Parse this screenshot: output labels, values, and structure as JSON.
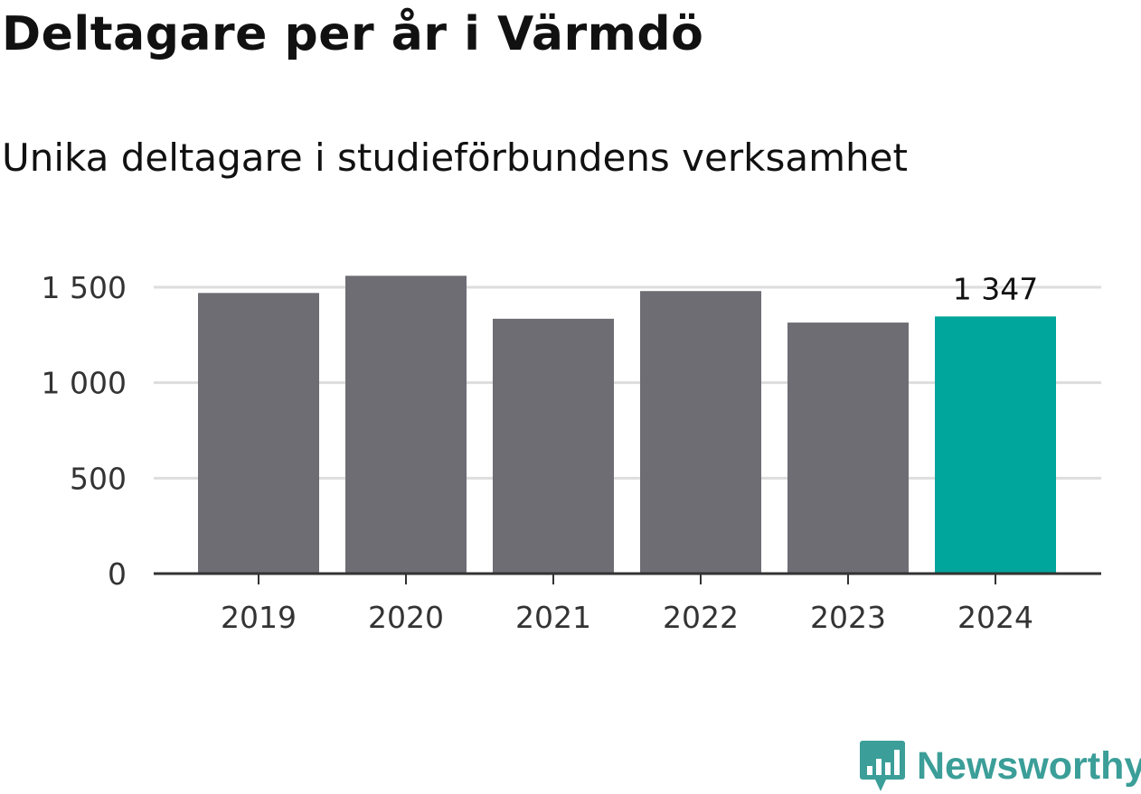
{
  "title": "Deltagare per år i Värmdö",
  "subtitle": "Unika deltagare i studieförbundens verksamhet",
  "brand": {
    "name": "Newsworthy",
    "color": "#3b9e98",
    "icon": "bar-chart-speech-bubble-icon"
  },
  "chart_data": {
    "type": "bar",
    "categories": [
      "2019",
      "2020",
      "2021",
      "2022",
      "2023",
      "2024"
    ],
    "values": [
      1470,
      1560,
      1335,
      1480,
      1315,
      1347
    ],
    "ylim": [
      0,
      1600
    ],
    "yticks": [
      0,
      500,
      1000,
      1500
    ],
    "ytick_labels": [
      "0",
      "500",
      "1 000",
      "1 500"
    ],
    "grid": true,
    "highlight_index": 5,
    "highlight_label": "1 347",
    "colors": {
      "default": "#6e6d74",
      "highlight": "#00a59b",
      "grid": "#dddddd",
      "axis": "#333333"
    },
    "xlabel": "",
    "ylabel": ""
  }
}
